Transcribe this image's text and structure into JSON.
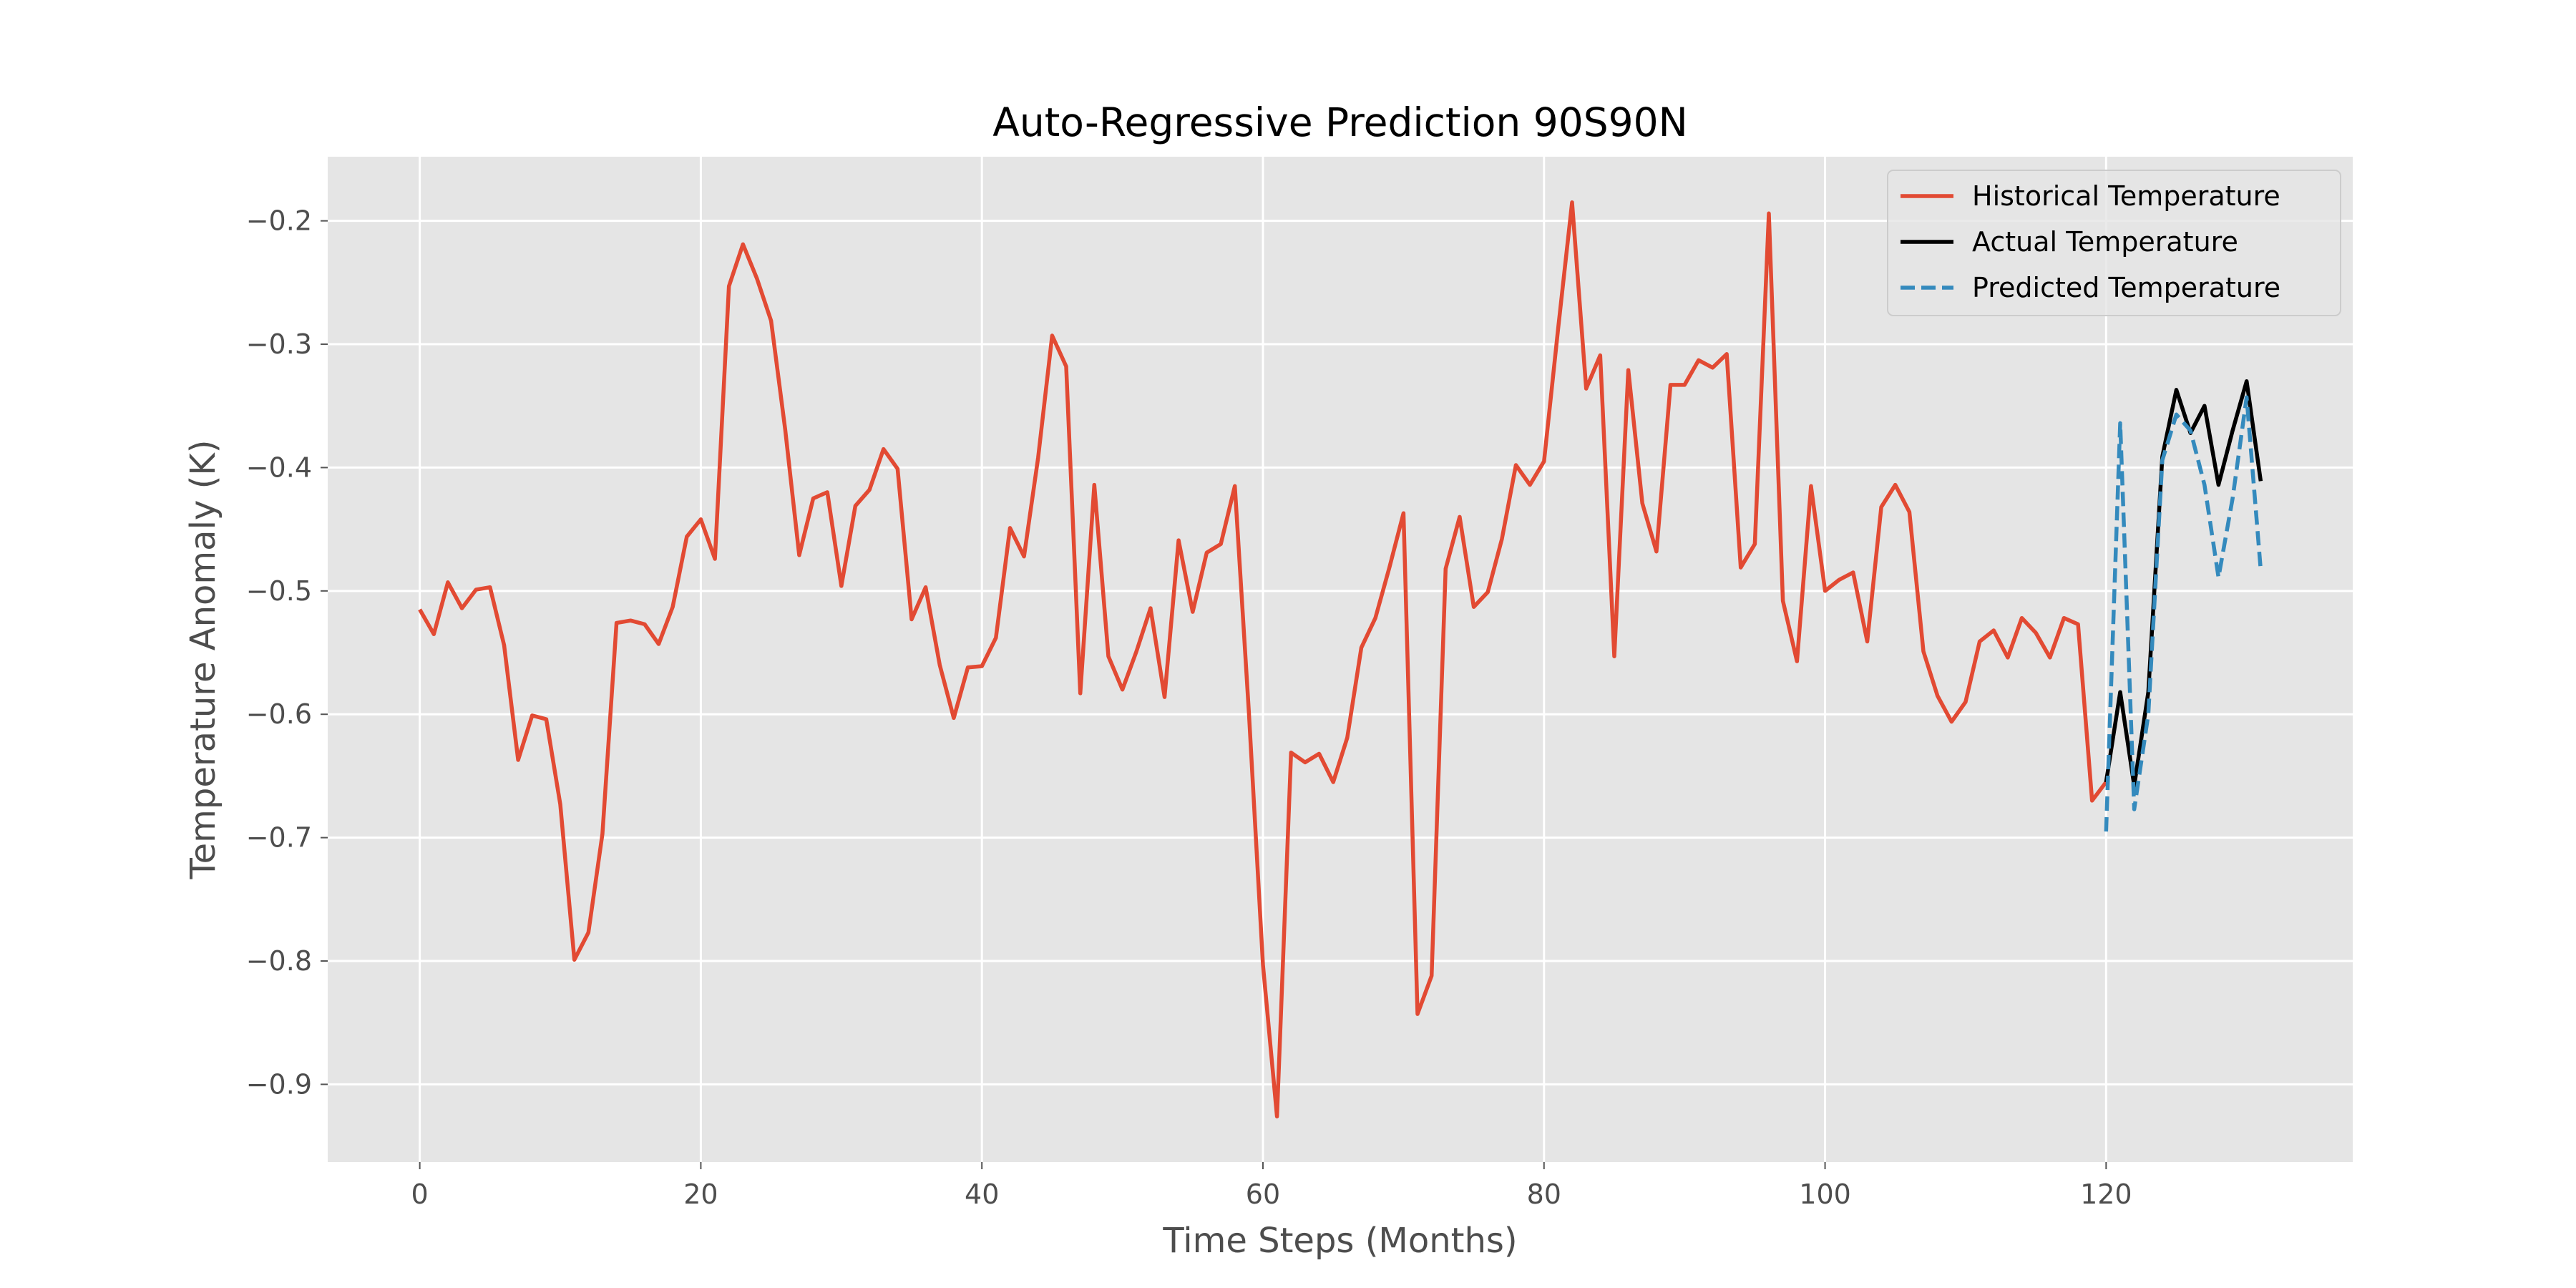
{
  "chart_data": {
    "type": "line",
    "title": "Auto-Regressive Prediction 90S90N",
    "xlabel": "Time Steps (Months)",
    "ylabel": "Temperature Anomaly (K)",
    "xlim": [
      -6.55,
      137.55
    ],
    "ylim": [
      -0.963,
      -0.148
    ],
    "xticks": [
      0,
      20,
      40,
      60,
      80,
      100,
      120
    ],
    "yticks": [
      -0.9,
      -0.8,
      -0.7,
      -0.6,
      -0.5,
      -0.4,
      -0.3,
      -0.2
    ],
    "grid": true,
    "legend_position": "top-right",
    "series": [
      {
        "name": "Historical Temperature",
        "color": "#e24a33",
        "style": "solid",
        "x_start": 0,
        "values": [
          -0.515,
          -0.535,
          -0.493,
          -0.514,
          -0.499,
          -0.497,
          -0.544,
          -0.637,
          -0.601,
          -0.604,
          -0.673,
          -0.799,
          -0.777,
          -0.697,
          -0.526,
          -0.524,
          -0.527,
          -0.543,
          -0.513,
          -0.456,
          -0.442,
          -0.474,
          -0.253,
          -0.219,
          -0.247,
          -0.281,
          -0.369,
          -0.471,
          -0.425,
          -0.42,
          -0.496,
          -0.431,
          -0.418,
          -0.385,
          -0.401,
          -0.523,
          -0.497,
          -0.56,
          -0.603,
          -0.562,
          -0.561,
          -0.538,
          -0.449,
          -0.472,
          -0.392,
          -0.293,
          -0.318,
          -0.583,
          -0.414,
          -0.553,
          -0.58,
          -0.549,
          -0.514,
          -0.586,
          -0.459,
          -0.517,
          -0.469,
          -0.462,
          -0.415,
          -0.598,
          -0.803,
          -0.926,
          -0.631,
          -0.639,
          -0.632,
          -0.655,
          -0.619,
          -0.546,
          -0.522,
          -0.481,
          -0.437,
          -0.843,
          -0.812,
          -0.482,
          -0.44,
          -0.513,
          -0.501,
          -0.458,
          -0.398,
          -0.414,
          -0.395,
          -0.288,
          -0.185,
          -0.336,
          -0.309,
          -0.553,
          -0.321,
          -0.429,
          -0.468,
          -0.333,
          -0.333,
          -0.313,
          -0.319,
          -0.308,
          -0.481,
          -0.462,
          -0.194,
          -0.508,
          -0.557,
          -0.415,
          -0.5,
          -0.491,
          -0.485,
          -0.541,
          -0.432,
          -0.414,
          -0.436,
          -0.549,
          -0.585,
          -0.606,
          -0.59,
          -0.541,
          -0.532,
          -0.554,
          -0.522,
          -0.534,
          -0.554,
          -0.522,
          -0.527,
          -0.67,
          -0.655
        ]
      },
      {
        "name": "Actual Temperature",
        "color": "#000000",
        "style": "solid",
        "x_start": 120,
        "values": [
          -0.655,
          -0.582,
          -0.658,
          -0.582,
          -0.391,
          -0.337,
          -0.372,
          -0.35,
          -0.414,
          -0.37,
          -0.33,
          -0.411
        ]
      },
      {
        "name": "Predicted Temperature",
        "color": "#348abd",
        "style": "dashed",
        "x_start": 120,
        "values": [
          -0.695,
          -0.364,
          -0.677,
          -0.6,
          -0.394,
          -0.357,
          -0.37,
          -0.414,
          -0.489,
          -0.425,
          -0.343,
          -0.483
        ]
      }
    ]
  }
}
